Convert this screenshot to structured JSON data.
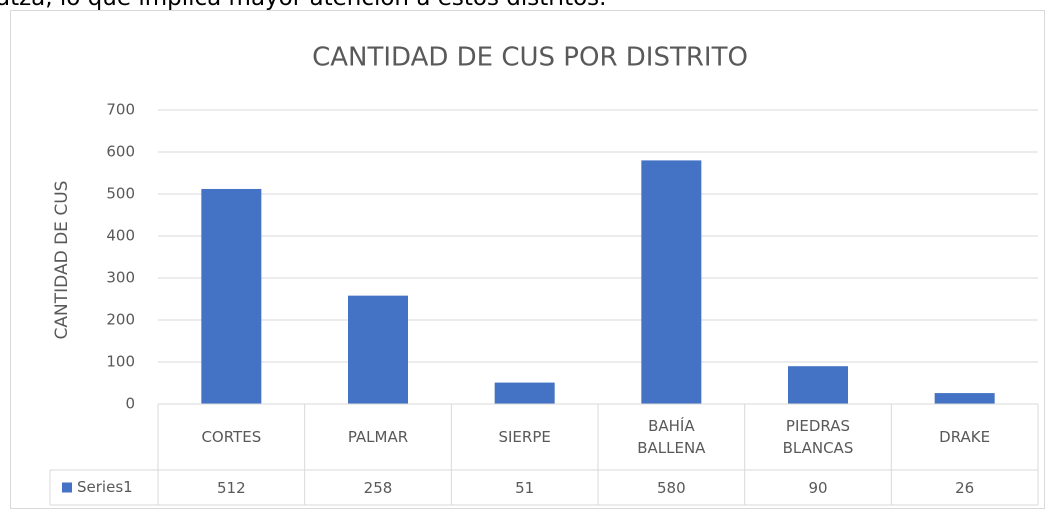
{
  "page_text": "atza, lo que implica mayor atención a estos distritos.",
  "chart_data": {
    "type": "bar",
    "title": "CANTIDAD DE CUS POR DISTRITO",
    "ylabel": "CANTIDAD DE CUS",
    "categories": [
      "CORTES",
      "PALMAR",
      "SIERPE",
      "BAHÍA BALLENA",
      "PIEDRAS BLANCAS",
      "DRAKE"
    ],
    "series": [
      {
        "name": "Series1",
        "color": "#4472c4",
        "values": [
          512,
          258,
          51,
          580,
          90,
          26
        ]
      }
    ],
    "ylim": [
      0,
      700
    ],
    "yticks": [
      0,
      100,
      200,
      300,
      400,
      500,
      600,
      700
    ],
    "grid": true,
    "data_table": true
  }
}
